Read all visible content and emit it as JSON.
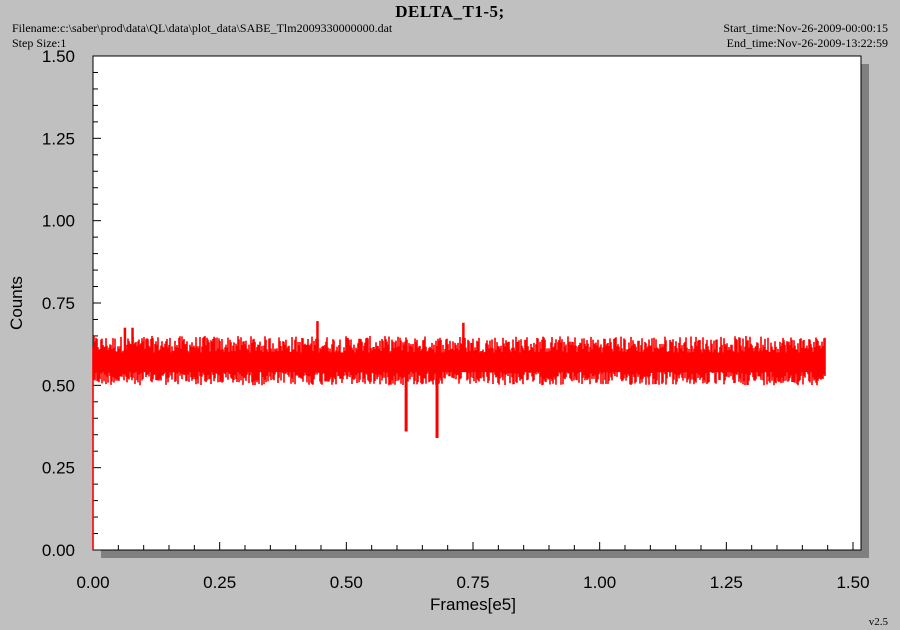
{
  "header": {
    "title": "DELTA_T1-5;",
    "filename": "Filename:c:\\saber\\prod\\data\\QL\\data\\plot_data\\SABE_Tlm2009330000000.dat",
    "step_size": "Step Size:1",
    "start_time": "Start_time:Nov-26-2009-00:00:15",
    "end_time": "End_time:Nov-26-2009-13:22:59"
  },
  "footer": {
    "version": "v2.5"
  },
  "colors": {
    "series": "#ff0000",
    "background": "#c0c0c0",
    "plot_area": "#ffffff",
    "shadow": "#808080"
  },
  "chart_data": {
    "type": "line",
    "title": "DELTA_T1-5;",
    "xlabel": "Frames[e5]",
    "ylabel": "Counts",
    "xlim": [
      0.0,
      1.5
    ],
    "ylim": [
      0.0,
      1.5
    ],
    "x_ticks": [
      "0.00",
      "0.25",
      "0.50",
      "0.75",
      "1.00",
      "1.25",
      "1.50"
    ],
    "y_ticks": [
      "0.00",
      "0.25",
      "0.50",
      "0.75",
      "1.00",
      "1.25",
      "1.50"
    ],
    "grid": false,
    "series": [
      {
        "color": "#ff0000",
        "x_range": [
          0.0,
          1.445
        ],
        "band_low": 0.5,
        "band_high": 0.65,
        "typical_value": 0.57,
        "low_spikes": [
          {
            "x": 0.618,
            "y": 0.36
          },
          {
            "x": 0.679,
            "y": 0.34
          }
        ],
        "high_spikes": [
          {
            "x": 0.063,
            "y": 0.675
          },
          {
            "x": 0.078,
            "y": 0.675
          },
          {
            "x": 0.443,
            "y": 0.695
          },
          {
            "x": 0.731,
            "y": 0.69
          }
        ],
        "initial_drop": {
          "x": 0.0,
          "y": 0.0
        }
      }
    ]
  }
}
